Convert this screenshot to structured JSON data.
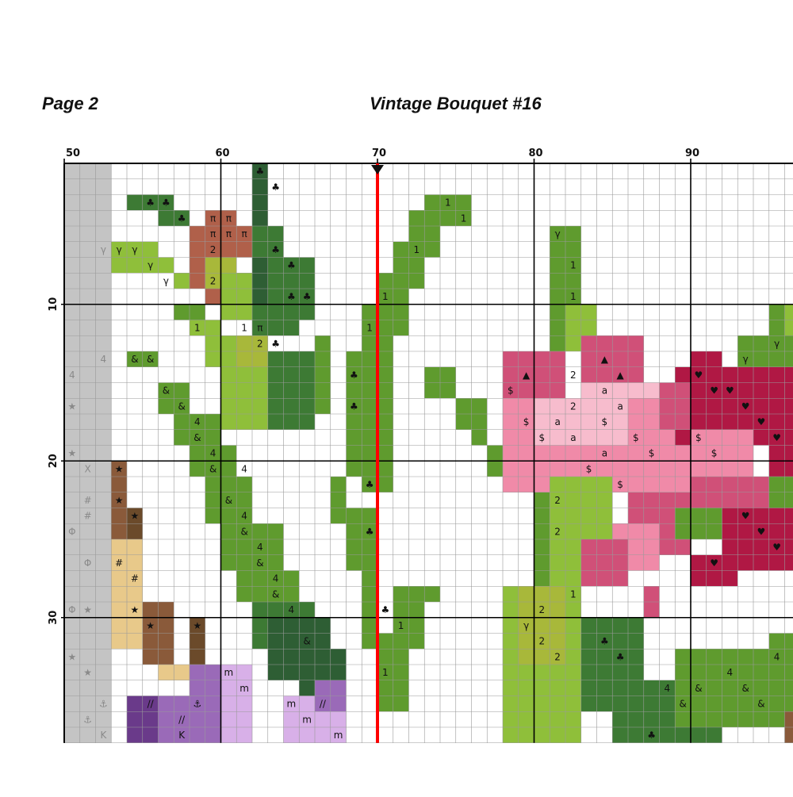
{
  "header": {
    "page_label": "Page 2",
    "title": "Vintage Bouquet #16"
  },
  "chart_data": {
    "type": "table",
    "col_labels": [
      "50",
      "60",
      "70",
      "80",
      "90"
    ],
    "row_labels": [
      "10",
      "20",
      "30"
    ],
    "center_col_label": "70",
    "colors": {
      "grid": "#000000",
      "minor_grid": "#9a9a9a",
      "previous_page_overlap": "#c4c4c4",
      "center_line": "#ff0000",
      "leaf_light": "#8fbf3a",
      "leaf_mid": "#5f9b2e",
      "leaf_dark": "#3d7a34",
      "leaf_darker": "#2e5e34",
      "olive": "#a8b83a",
      "rose_dark": "#b01844",
      "rose_mid": "#d05078",
      "rose_pink": "#f08aa8",
      "rose_light": "#f7bccd",
      "brown_dark": "#6b4a2a",
      "brown_mid": "#8a5a3a",
      "tan": "#e8c98a",
      "purple_dark": "#6a3a8a",
      "purple_mid": "#9a6ab8",
      "purple_light": "#d8b0e8",
      "rust": "#b0604a"
    }
  }
}
